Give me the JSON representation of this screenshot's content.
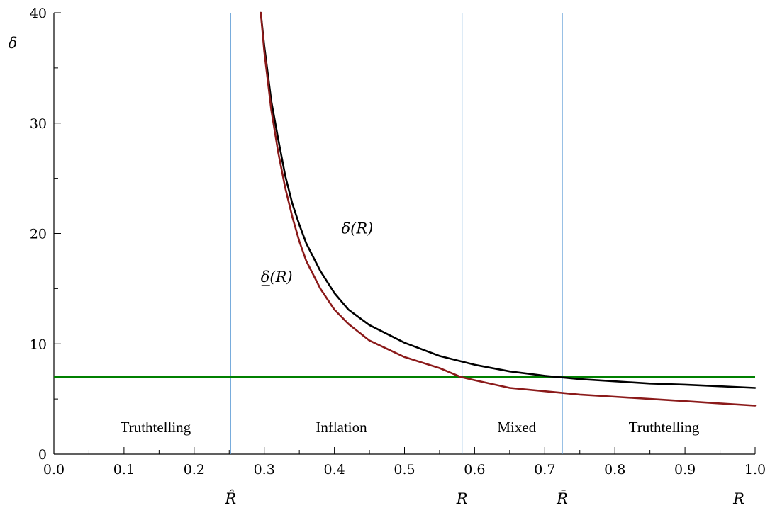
{
  "chart_data": {
    "type": "line",
    "title": "",
    "xlabel": "R",
    "ylabel": "δ",
    "xlim": [
      0,
      1
    ],
    "ylim": [
      0,
      40
    ],
    "grid": false,
    "x_ticks": [
      "0.0",
      "0.1",
      "0.2",
      "0.3",
      "0.4",
      "0.5",
      "0.6",
      "0.7",
      "0.8",
      "0.9",
      "1.0"
    ],
    "y_ticks": [
      "0",
      "10",
      "20",
      "30",
      "40"
    ],
    "series": [
      {
        "name": "δ̄(R)",
        "color": "#000000",
        "x": [
          0.295,
          0.3,
          0.31,
          0.32,
          0.33,
          0.34,
          0.35,
          0.36,
          0.38,
          0.4,
          0.42,
          0.45,
          0.5,
          0.55,
          0.6,
          0.65,
          0.7,
          0.75,
          0.8,
          0.85,
          0.9,
          0.95,
          1.0
        ],
        "y": [
          40,
          37,
          32,
          28.5,
          25.2,
          22.7,
          20.8,
          19.1,
          16.6,
          14.6,
          13.1,
          11.7,
          10.1,
          8.9,
          8.1,
          7.5,
          7.1,
          6.8,
          6.6,
          6.4,
          6.3,
          6.15,
          6.0
        ]
      },
      {
        "name": "δ(R)",
        "color": "#8b1a1a",
        "x": [
          0.295,
          0.3,
          0.31,
          0.32,
          0.33,
          0.34,
          0.35,
          0.36,
          0.38,
          0.4,
          0.42,
          0.45,
          0.5,
          0.55,
          0.58,
          0.6,
          0.65,
          0.7,
          0.75,
          0.8,
          0.85,
          0.9,
          0.95,
          1.0
        ],
        "y": [
          40,
          36.5,
          31.2,
          27.3,
          24.1,
          21.5,
          19.3,
          17.5,
          15.0,
          13.1,
          11.8,
          10.3,
          8.8,
          7.8,
          7.0,
          6.7,
          6.0,
          5.7,
          5.4,
          5.2,
          5.0,
          4.8,
          4.6,
          4.4
        ]
      }
    ],
    "horizontal_line": {
      "y": 7,
      "color": "#008000"
    },
    "vertical_lines": [
      {
        "x": 0.252,
        "label": "R̂"
      },
      {
        "x": 0.582,
        "label": "R"
      },
      {
        "x": 0.725,
        "label": "R̄"
      }
    ],
    "vline_color": "#5b9bd5",
    "regions": [
      {
        "label": "Truthtelling",
        "x": 0.145
      },
      {
        "label": "Inflation",
        "x": 0.41
      },
      {
        "label": "Mixed",
        "x": 0.66
      },
      {
        "label": "Truthtelling",
        "x": 0.87
      }
    ],
    "curve_labels": [
      {
        "text": "δ̄(R)",
        "x": 0.41,
        "y": 20.0
      },
      {
        "text": "δ(R)",
        "x": 0.295,
        "y": 15.6
      }
    ]
  }
}
